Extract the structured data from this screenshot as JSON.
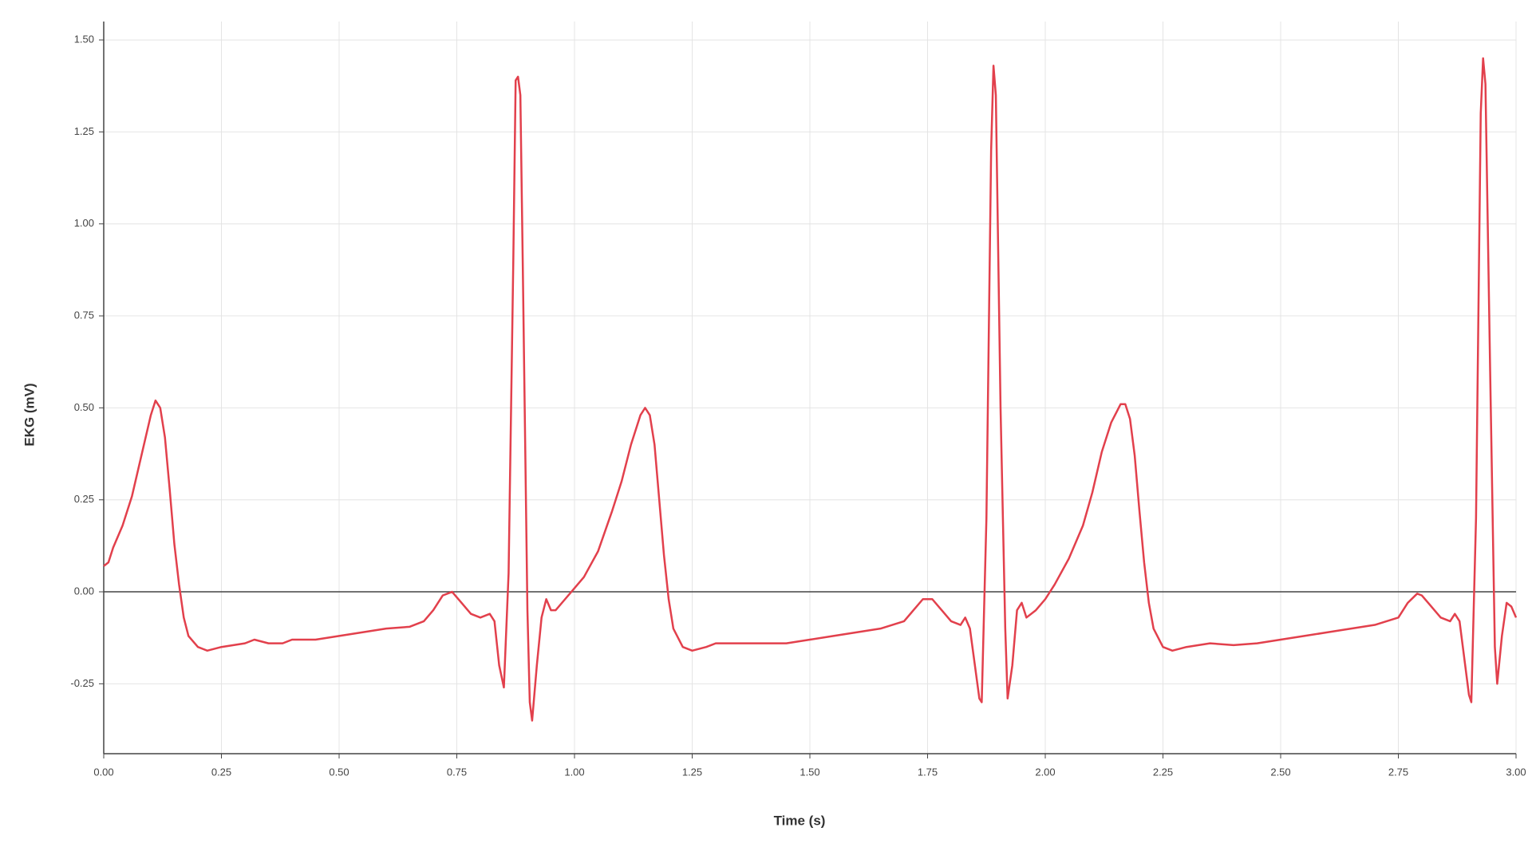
{
  "chart_data": {
    "type": "line",
    "xlabel": "Time (s)",
    "ylabel": "EKG (mV)",
    "xlim": [
      0,
      3
    ],
    "ylim": [
      -0.44,
      1.55
    ],
    "xticks": [
      {
        "value": 0,
        "label": "0.00"
      },
      0.25,
      {
        "value": 0.5,
        "label": "0.50"
      },
      0.75,
      {
        "value": 1,
        "label": "1.00"
      },
      1.25,
      {
        "value": 1.5,
        "label": "1.50"
      },
      1.75,
      {
        "value": 2,
        "label": "2.00"
      },
      2.25,
      {
        "value": 2.5,
        "label": "2.50"
      },
      2.75,
      {
        "value": 3,
        "label": "3.00"
      }
    ],
    "yticks": [
      -0.25,
      {
        "value": 0,
        "label": "0.00"
      },
      0.25,
      {
        "value": 0.5,
        "label": "0.50"
      },
      0.75,
      {
        "value": 1,
        "label": "1.00"
      },
      1.25,
      {
        "value": 1.5,
        "label": "1.50"
      }
    ],
    "grid": true,
    "zero_line": true,
    "x": [
      0,
      0.01,
      0.02,
      0.04,
      0.06,
      0.08,
      0.1,
      0.11,
      0.12,
      0.13,
      0.14,
      0.15,
      0.16,
      0.17,
      0.18,
      0.2,
      0.22,
      0.25,
      0.3,
      0.32,
      0.35,
      0.38,
      0.4,
      0.45,
      0.5,
      0.55,
      0.6,
      0.65,
      0.68,
      0.7,
      0.72,
      0.74,
      0.76,
      0.78,
      0.8,
      0.82,
      0.83,
      0.84,
      0.85,
      0.86,
      0.87,
      0.875,
      0.88,
      0.885,
      0.89,
      0.9,
      0.905,
      0.91,
      0.92,
      0.93,
      0.94,
      0.95,
      0.96,
      0.98,
      1,
      1.02,
      1.05,
      1.08,
      1.1,
      1.12,
      1.14,
      1.15,
      1.16,
      1.17,
      1.18,
      1.19,
      1.2,
      1.21,
      1.23,
      1.25,
      1.28,
      1.3,
      1.35,
      1.4,
      1.45,
      1.5,
      1.55,
      1.6,
      1.65,
      1.7,
      1.72,
      1.74,
      1.76,
      1.78,
      1.8,
      1.82,
      1.83,
      1.84,
      1.86,
      1.865,
      1.875,
      1.885,
      1.89,
      1.895,
      1.905,
      1.915,
      1.92,
      1.93,
      1.94,
      1.95,
      1.96,
      1.98,
      2,
      2.02,
      2.05,
      2.08,
      2.1,
      2.12,
      2.14,
      2.16,
      2.17,
      2.18,
      2.19,
      2.2,
      2.21,
      2.22,
      2.23,
      2.25,
      2.27,
      2.3,
      2.35,
      2.4,
      2.45,
      2.5,
      2.55,
      2.6,
      2.65,
      2.7,
      2.75,
      2.77,
      2.79,
      2.8,
      2.82,
      2.84,
      2.86,
      2.87,
      2.88,
      2.9,
      2.905,
      2.915,
      2.925,
      2.93,
      2.935,
      2.945,
      2.955,
      2.96,
      2.97,
      2.98,
      2.99,
      3
    ],
    "series": [
      {
        "name": "EKG",
        "color": "#e2404c",
        "values": [
          0.07,
          0.08,
          0.12,
          0.18,
          0.26,
          0.37,
          0.48,
          0.52,
          0.5,
          0.42,
          0.28,
          0.13,
          0.02,
          -0.07,
          -0.12,
          -0.15,
          -0.16,
          -0.15,
          -0.14,
          -0.13,
          -0.14,
          -0.14,
          -0.13,
          -0.13,
          -0.12,
          -0.11,
          -0.1,
          -0.095,
          -0.08,
          -0.05,
          -0.01,
          0,
          -0.03,
          -0.06,
          -0.07,
          -0.06,
          -0.08,
          -0.2,
          -0.26,
          0.05,
          0.9,
          1.39,
          1.4,
          1.35,
          0.9,
          -0.05,
          -0.3,
          -0.35,
          -0.2,
          -0.07,
          -0.02,
          -0.05,
          -0.05,
          -0.02,
          0.01,
          0.04,
          0.11,
          0.22,
          0.3,
          0.4,
          0.48,
          0.5,
          0.48,
          0.4,
          0.25,
          0.1,
          -0.02,
          -0.1,
          -0.15,
          -0.16,
          -0.15,
          -0.14,
          -0.14,
          -0.14,
          -0.14,
          -0.13,
          -0.12,
          -0.11,
          -0.1,
          -0.08,
          -0.05,
          -0.02,
          -0.02,
          -0.05,
          -0.08,
          -0.09,
          -0.07,
          -0.1,
          -0.29,
          -0.3,
          0.2,
          1.2,
          1.43,
          1.35,
          0.5,
          -0.1,
          -0.29,
          -0.2,
          -0.05,
          -0.03,
          -0.07,
          -0.05,
          -0.02,
          0.02,
          0.09,
          0.18,
          0.27,
          0.38,
          0.46,
          0.51,
          0.51,
          0.47,
          0.37,
          0.22,
          0.08,
          -0.03,
          -0.1,
          -0.15,
          -0.16,
          -0.15,
          -0.14,
          -0.145,
          -0.14,
          -0.13,
          -0.12,
          -0.11,
          -0.1,
          -0.09,
          -0.07,
          -0.03,
          -0.005,
          -0.01,
          -0.04,
          -0.07,
          -0.08,
          -0.06,
          -0.08,
          -0.28,
          -0.3,
          0.2,
          1.3,
          1.45,
          1.38,
          0.6,
          -0.15,
          -0.25,
          -0.12,
          -0.03,
          -0.04,
          -0.07
        ]
      }
    ]
  }
}
